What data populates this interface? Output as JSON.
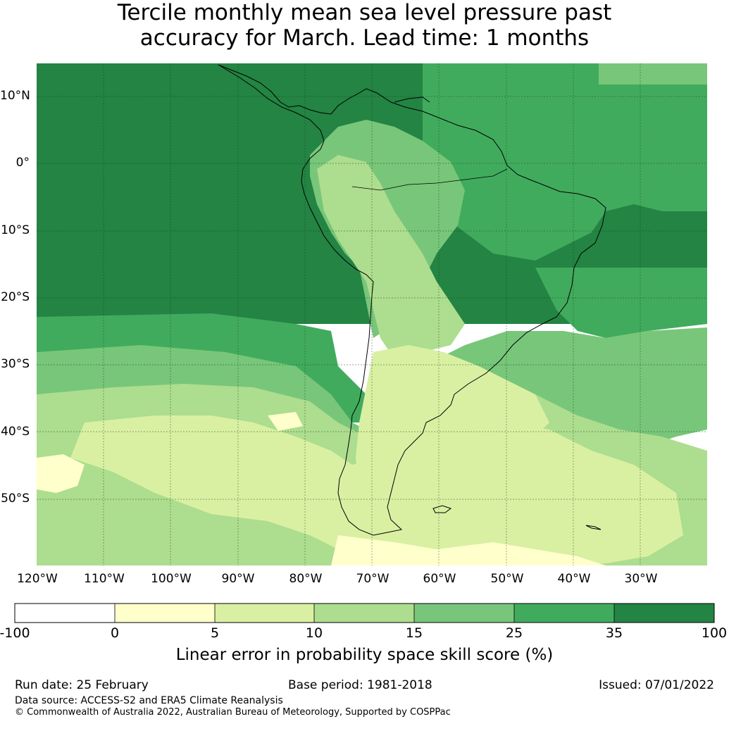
{
  "title": {
    "line1": "Tercile monthly mean sea level pressure past",
    "line2": "accuracy for March. Lead time: 1 months"
  },
  "map": {
    "latitude_labels": [
      "10°N",
      "0°",
      "10°S",
      "20°S",
      "30°S",
      "40°S",
      "50°S"
    ],
    "longitude_labels": [
      "120°W",
      "110°W",
      "100°W",
      "90°W",
      "80°W",
      "70°W",
      "60°W",
      "50°W",
      "40°W",
      "30°W"
    ],
    "extent": {
      "lon": [
        -120,
        -20
      ],
      "lat": [
        -60,
        15
      ]
    },
    "color_by_score_class": {
      "0-5": "#ffffcc",
      "5-10": "#d9f0a3",
      "10-15": "#addd8e",
      "15-25": "#78c679",
      "25-35": "#41ab5d",
      "35-100": "#238443"
    }
  },
  "colorbar": {
    "boundaries": [
      "-100",
      "0",
      "5",
      "10",
      "15",
      "25",
      "35",
      "100"
    ],
    "colors": [
      "#ffffff",
      "#ffffcc",
      "#d9f0a3",
      "#addd8e",
      "#78c679",
      "#41ab5d",
      "#238443"
    ],
    "label": "Linear error in probability space skill score (%)"
  },
  "footer": {
    "run_date": "Run date: 25 February",
    "base_period": "Base period: 1981-2018",
    "issued": "Issued: 07/01/2022",
    "data_source": "Data source: ACCESS-S2 and ERA5 Climate Reanalysis",
    "copyright": "© Commonwealth of Australia 2022, Australian Bureau of Meteorology, Supported by COSPPac"
  }
}
